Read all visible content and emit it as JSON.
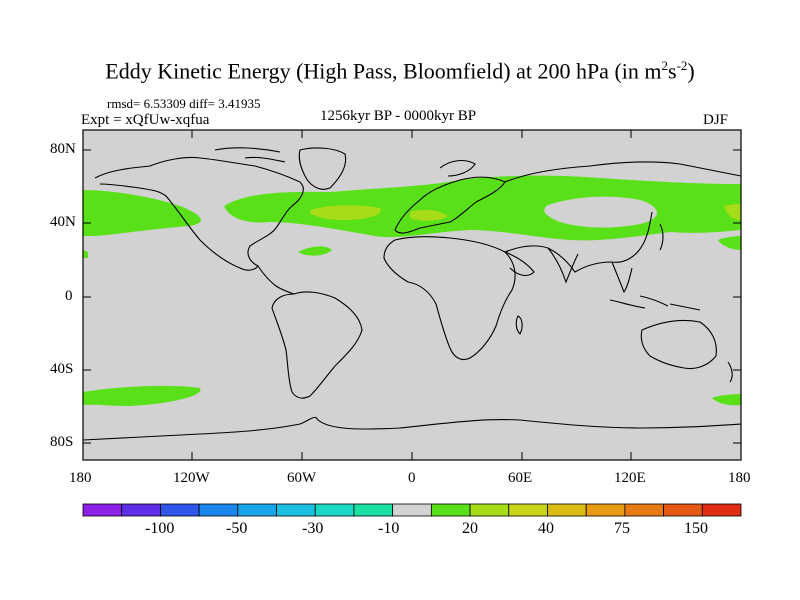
{
  "title": {
    "main": "Eddy Kinetic Energy (High Pass, Bloomfield) at 200 hPa (in m",
    "sup1": "2",
    "mid": "s",
    "sup2": "-2",
    "end": ")"
  },
  "stats": "rmsd= 6.53309 diff= 3.41935",
  "expt": "Expt = xQfUw-xqfua",
  "period": "1256kyr BP - 0000kyr BP",
  "season": "DJF",
  "lat_labels": [
    "80N",
    "40N",
    "0",
    "40S",
    "80S"
  ],
  "lon_labels": [
    "180",
    "120W",
    "60W",
    "0",
    "60E",
    "120E",
    "180"
  ],
  "colorbar": {
    "colors": [
      "#8a1fe6",
      "#5e2ee6",
      "#2f56e8",
      "#1a85ea",
      "#1aa5ea",
      "#1ac0e0",
      "#1ad8c6",
      "#1ae0a4",
      "#d2d2d2",
      "#5ae018",
      "#a6dc18",
      "#c8d418",
      "#dcbc14",
      "#e89a14",
      "#e87a14",
      "#e45814",
      "#e02c14"
    ],
    "labels": [
      "-100",
      "-50",
      "-30",
      "-10",
      "20",
      "40",
      "75",
      "150"
    ]
  }
}
